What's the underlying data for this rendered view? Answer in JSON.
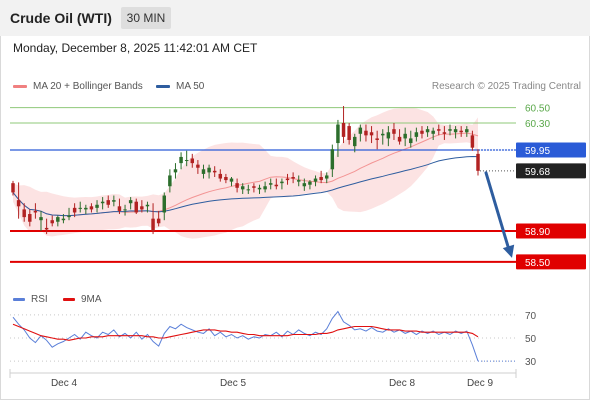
{
  "header": {
    "title": "Crude Oil (WTI)",
    "interval": "30 MIN",
    "datetime": "Monday, December 8, 2025 11:42:01 AM CET"
  },
  "legend": {
    "bb_label": "MA 20 + Bollinger Bands",
    "ma50_label": "MA 50",
    "rsi_label": "RSI",
    "ma9_label": "9MA",
    "credit": "Research © 2025 Trading Central"
  },
  "colors": {
    "bb": "#f08080",
    "ma50": "#2e5d9f",
    "rsi": "#5a7fd8",
    "ma9": "#e01010",
    "up": "#2c6e2c",
    "down": "#b22222",
    "resistance": "#8fc87a",
    "pivot": "#2a5bd7",
    "support": "#e00000",
    "current": "#222222",
    "arrow": "#2e5d9f"
  },
  "chart_data": [
    {
      "type": "candlestick",
      "name": "price",
      "x_labels": [
        "Dec 4",
        "Dec 5",
        "Dec 8",
        "Dec 9"
      ],
      "ylim": [
        58.2,
        60.65
      ],
      "price_levels": [
        {
          "value": 60.5,
          "label": "60.50",
          "kind": "resistance"
        },
        {
          "value": 60.3,
          "label": "60.30",
          "kind": "resistance"
        },
        {
          "value": 59.95,
          "label": "59.95",
          "kind": "pivot"
        },
        {
          "value": 59.68,
          "label": "59.68",
          "kind": "current"
        },
        {
          "value": 58.9,
          "label": "58.90",
          "kind": "support"
        },
        {
          "value": 58.5,
          "label": "58.50",
          "kind": "support"
        }
      ],
      "candles": [
        [
          59.52,
          59.55,
          59.36,
          59.4
        ],
        [
          59.3,
          59.53,
          59.06,
          59.22
        ],
        [
          59.18,
          59.26,
          59.02,
          59.08
        ],
        [
          59.12,
          59.18,
          58.96,
          59.02
        ],
        [
          59.16,
          59.26,
          59.06,
          59.14
        ],
        [
          59.04,
          59.16,
          58.9,
          59.08
        ],
        [
          58.94,
          59.06,
          58.86,
          58.92
        ],
        [
          59.04,
          59.1,
          58.96,
          59.0
        ],
        [
          59.02,
          59.1,
          58.96,
          59.08
        ],
        [
          59.04,
          59.12,
          59.0,
          59.06
        ],
        [
          59.08,
          59.2,
          59.04,
          59.1
        ],
        [
          59.2,
          59.26,
          59.08,
          59.14
        ],
        [
          59.2,
          59.28,
          59.14,
          59.2
        ],
        [
          59.18,
          59.24,
          59.12,
          59.2
        ],
        [
          59.22,
          59.26,
          59.14,
          59.18
        ],
        [
          59.2,
          59.3,
          59.14,
          59.24
        ],
        [
          59.26,
          59.34,
          59.18,
          59.28
        ],
        [
          59.3,
          59.36,
          59.2,
          59.24
        ],
        [
          59.28,
          59.36,
          59.22,
          59.3
        ],
        [
          59.22,
          59.32,
          59.12,
          59.16
        ],
        [
          59.18,
          59.24,
          59.1,
          59.18
        ],
        [
          59.26,
          59.34,
          59.18,
          59.3
        ],
        [
          59.28,
          59.32,
          59.12,
          59.14
        ],
        [
          59.22,
          59.3,
          59.14,
          59.18
        ],
        [
          59.22,
          59.28,
          59.14,
          59.24
        ],
        [
          59.06,
          59.26,
          58.86,
          58.9
        ],
        [
          59.06,
          59.16,
          58.96,
          59.0
        ],
        [
          59.14,
          59.4,
          59.04,
          59.36
        ],
        [
          59.48,
          59.7,
          59.4,
          59.62
        ],
        [
          59.66,
          59.78,
          59.58,
          59.7
        ],
        [
          59.78,
          59.92,
          59.7,
          59.86
        ],
        [
          59.82,
          59.94,
          59.74,
          59.82
        ],
        [
          59.84,
          59.9,
          59.72,
          59.78
        ],
        [
          59.76,
          59.82,
          59.64,
          59.72
        ],
        [
          59.64,
          59.76,
          59.58,
          59.7
        ],
        [
          59.66,
          59.76,
          59.58,
          59.72
        ],
        [
          59.68,
          59.74,
          59.6,
          59.66
        ],
        [
          59.64,
          59.7,
          59.54,
          59.58
        ],
        [
          59.6,
          59.64,
          59.52,
          59.56
        ],
        [
          59.54,
          59.6,
          59.48,
          59.58
        ],
        [
          59.52,
          59.58,
          59.4,
          59.46
        ],
        [
          59.44,
          59.52,
          59.38,
          59.48
        ],
        [
          59.44,
          59.5,
          59.38,
          59.44
        ],
        [
          59.48,
          59.52,
          59.4,
          59.46
        ],
        [
          59.44,
          59.5,
          59.38,
          59.46
        ],
        [
          59.44,
          59.54,
          59.4,
          59.48
        ],
        [
          59.5,
          59.58,
          59.44,
          59.52
        ],
        [
          59.5,
          59.58,
          59.44,
          59.48
        ],
        [
          59.52,
          59.58,
          59.44,
          59.54
        ],
        [
          59.58,
          59.64,
          59.5,
          59.56
        ],
        [
          59.6,
          59.66,
          59.52,
          59.58
        ],
        [
          59.54,
          59.62,
          59.48,
          59.56
        ],
        [
          59.48,
          59.58,
          59.42,
          59.52
        ],
        [
          59.5,
          59.56,
          59.44,
          59.54
        ],
        [
          59.54,
          59.62,
          59.48,
          59.58
        ],
        [
          59.6,
          59.68,
          59.52,
          59.56
        ],
        [
          59.58,
          59.66,
          59.52,
          59.62
        ],
        [
          59.7,
          60.02,
          59.6,
          59.96
        ],
        [
          60.04,
          60.34,
          59.86,
          60.28
        ],
        [
          60.3,
          60.52,
          60.04,
          60.12
        ],
        [
          60.26,
          60.3,
          60.02,
          60.08
        ],
        [
          60.0,
          60.16,
          59.92,
          60.12
        ],
        [
          60.16,
          60.28,
          60.06,
          60.24
        ],
        [
          60.2,
          60.28,
          60.06,
          60.14
        ],
        [
          60.18,
          60.26,
          60.04,
          60.14
        ],
        [
          60.1,
          60.2,
          59.96,
          60.08
        ],
        [
          60.14,
          60.22,
          60.02,
          60.16
        ],
        [
          60.1,
          60.26,
          60.0,
          60.18
        ],
        [
          60.22,
          60.3,
          60.08,
          60.16
        ],
        [
          60.12,
          60.22,
          60.02,
          60.06
        ],
        [
          60.1,
          60.24,
          60.0,
          60.16
        ],
        [
          60.04,
          60.2,
          59.98,
          60.1
        ],
        [
          60.12,
          60.24,
          60.06,
          60.18
        ],
        [
          60.2,
          60.26,
          60.1,
          60.16
        ],
        [
          60.18,
          60.26,
          60.12,
          60.22
        ],
        [
          60.16,
          60.24,
          60.08,
          60.2
        ],
        [
          60.22,
          60.28,
          60.14,
          60.2
        ],
        [
          60.18,
          60.26,
          60.08,
          60.16
        ],
        [
          60.2,
          60.28,
          60.14,
          60.22
        ],
        [
          60.18,
          60.26,
          60.1,
          60.22
        ],
        [
          60.2,
          60.26,
          60.12,
          60.18
        ],
        [
          60.18,
          60.26,
          60.12,
          60.22
        ],
        [
          60.14,
          60.2,
          59.94,
          59.98
        ],
        [
          59.9,
          59.96,
          59.62,
          59.68
        ]
      ]
    },
    {
      "type": "line",
      "name": "rsi-panel",
      "ylim": [
        24,
        76
      ],
      "ticks": [
        70,
        50,
        30
      ],
      "series": [
        {
          "name": "RSI",
          "values": [
            68,
            62,
            57,
            50,
            46,
            52,
            48,
            42,
            45,
            47,
            50,
            53,
            49,
            55,
            52,
            50,
            55,
            53,
            57,
            51,
            54,
            50,
            55,
            49,
            53,
            47,
            43,
            54,
            60,
            58,
            62,
            59,
            57,
            55,
            54,
            58,
            52,
            55,
            51,
            53,
            50,
            52,
            49,
            51,
            50,
            53,
            52,
            55,
            51,
            56,
            53,
            57,
            54,
            52,
            55,
            53,
            58,
            67,
            73,
            64,
            61,
            57,
            58,
            56,
            59,
            56,
            55,
            58,
            55,
            57,
            54,
            56,
            53,
            56,
            54,
            56,
            53,
            55,
            53,
            56,
            54,
            56,
            44,
            30
          ]
        },
        {
          "name": "9MA",
          "values": [
            62,
            60,
            58,
            56,
            54,
            52,
            51,
            50,
            49,
            49,
            48,
            49,
            50,
            50,
            51,
            51,
            51,
            52,
            52,
            52,
            52,
            52,
            52,
            52,
            51,
            51,
            50,
            50,
            51,
            52,
            53,
            54,
            55,
            56,
            57,
            57,
            57,
            56,
            56,
            55,
            55,
            54,
            53,
            53,
            52,
            52,
            52,
            52,
            52,
            52,
            53,
            53,
            53,
            53,
            53,
            54,
            54,
            55,
            57,
            58,
            59,
            60,
            60,
            60,
            60,
            59,
            58,
            57,
            57,
            57,
            56,
            56,
            56,
            55,
            55,
            55,
            55,
            55,
            55,
            55,
            55,
            55,
            54,
            51
          ]
        }
      ]
    }
  ]
}
